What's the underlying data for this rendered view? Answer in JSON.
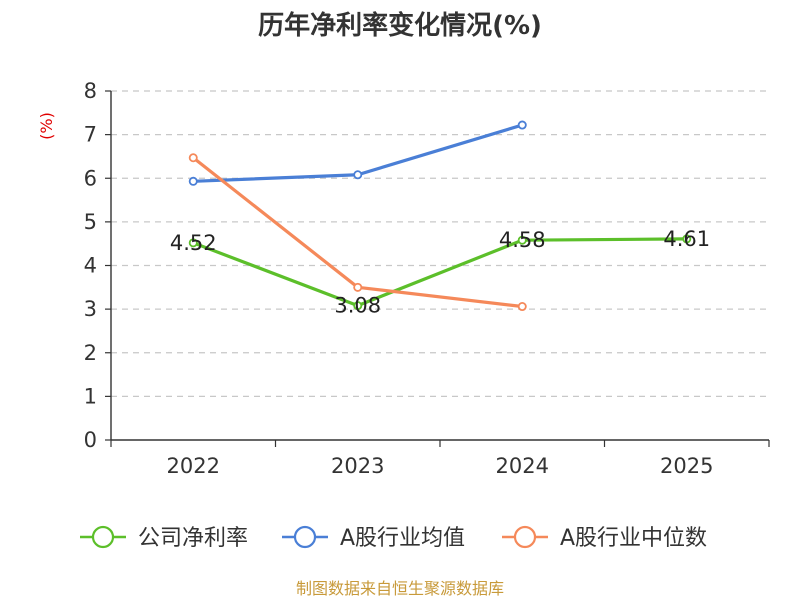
{
  "chart_data": {
    "type": "line",
    "title": "历年净利率变化情况(%)",
    "ylabel": "(%)",
    "xlabel": "",
    "categories": [
      "2022",
      "2023",
      "2024",
      "2025"
    ],
    "y_ticks": [
      "0",
      "1",
      "2",
      "3",
      "4",
      "5",
      "6",
      "7",
      "8"
    ],
    "ylim": [
      0,
      8
    ],
    "grid": true,
    "legend_position": "bottom",
    "series": [
      {
        "name": "公司净利率",
        "color": "#5cbf2a",
        "values": [
          4.52,
          3.08,
          4.58,
          4.61
        ],
        "labels": [
          "4.52",
          "3.08",
          "4.58",
          "4.61"
        ]
      },
      {
        "name": "A股行业均值",
        "color": "#4a7fd6",
        "values": [
          5.93,
          6.08,
          7.22,
          null
        ]
      },
      {
        "name": "A股行业中位数",
        "color": "#f5895a",
        "values": [
          6.47,
          3.5,
          3.06,
          null
        ]
      }
    ],
    "source": "制图数据来自恒生聚源数据库"
  }
}
